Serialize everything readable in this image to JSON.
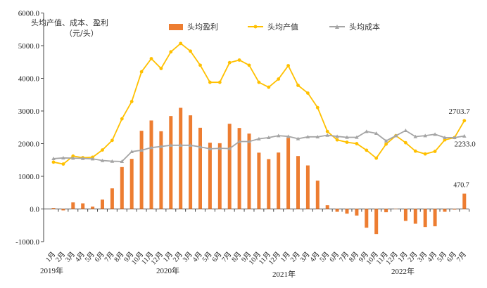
{
  "chart_data": {
    "type": "bar+line",
    "ylabel_line1": "头均产值、成本、盈利",
    "ylabel_line2": "（元/头）",
    "ylim": [
      -1000,
      6000
    ],
    "yticks": [
      "6000.0",
      "5000.0",
      "4000.0",
      "3000.0",
      "2000.0",
      "1000.0",
      "0.0",
      "-1000.0"
    ],
    "ytick_values": [
      6000,
      5000,
      4000,
      3000,
      2000,
      1000,
      0,
      -1000
    ],
    "categories": [
      "1月",
      "2月",
      "3月",
      "4月",
      "5月",
      "6月",
      "7月",
      "8月",
      "9月",
      "10月",
      "11月",
      "12月",
      "1月",
      "2月",
      "3月",
      "4月",
      "5月",
      "6月",
      "7月",
      "8月",
      "9月",
      "10月",
      "11月",
      "12月",
      "1月",
      "2月",
      "3月",
      "4月",
      "5月",
      "6月",
      "7月",
      "8月",
      "9月",
      "10月",
      "11月",
      "12月",
      "1月",
      "2月",
      "3月",
      "4月",
      "5月",
      "6月",
      "7月"
    ],
    "years": [
      "2019年",
      "2020年",
      "2021年",
      "2022年"
    ],
    "legend_placement": "top",
    "series": [
      {
        "name": "头均盈利",
        "type": "bar",
        "color": "#ED7D31",
        "values": [
          29,
          -43,
          201,
          172,
          72,
          287,
          631,
          1283,
          1534,
          2394,
          2710,
          2380,
          2846,
          3097,
          2867,
          2487,
          2029,
          2014,
          2609,
          2480,
          2308,
          1724,
          1527,
          1728,
          2172,
          1620,
          1333,
          867,
          115,
          -86,
          -143,
          -201,
          -573,
          -767,
          -100,
          0,
          -366,
          -452,
          -552,
          -530,
          -86,
          -20,
          470.7
        ]
      },
      {
        "name": "头均产值",
        "type": "line",
        "color": "#FFC000",
        "values": [
          1434,
          1376,
          1620,
          1570,
          1584,
          1806,
          2100,
          2760,
          3290,
          4200,
          4602,
          4301,
          4810,
          5068,
          4832,
          4401,
          3878,
          3878,
          4480,
          4559,
          4401,
          3878,
          3728,
          3978,
          4387,
          3785,
          3548,
          3104,
          2373,
          2115,
          2043,
          2000,
          1799,
          1556,
          1986,
          2244,
          2029,
          1771,
          1685,
          1763,
          2115,
          2186,
          2703.7
        ]
      },
      {
        "name": "头均成本",
        "type": "line",
        "color": "#A5A5A5",
        "values": [
          1541,
          1563,
          1556,
          1548,
          1534,
          1484,
          1462,
          1455,
          1756,
          1799,
          1878,
          1914,
          1950,
          1950,
          1950,
          1900,
          1842,
          1857,
          1850,
          2065,
          2065,
          2147,
          2186,
          2244,
          2222,
          2151,
          2208,
          2208,
          2258,
          2222,
          2194,
          2194,
          2373,
          2315,
          2086,
          2244,
          2401,
          2215,
          2244,
          2287,
          2186,
          2186,
          2233.0
        ]
      }
    ],
    "annotations": [
      "2703.7",
      "2233.0",
      "470.7"
    ]
  }
}
